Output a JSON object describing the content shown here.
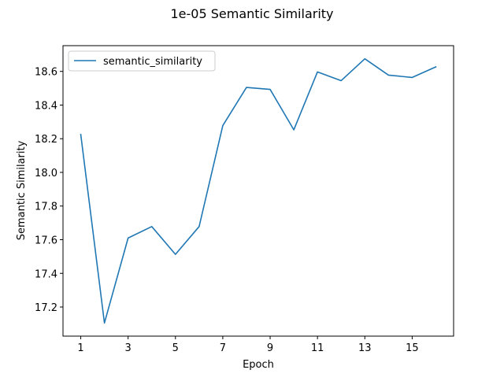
{
  "chart_data": {
    "type": "line",
    "title": "1e-05 Semantic Similarity",
    "xlabel": "Epoch",
    "ylabel": "Semantic Similarity",
    "x": [
      1,
      2,
      3,
      4,
      5,
      6,
      7,
      8,
      9,
      10,
      11,
      12,
      13,
      14,
      15,
      16
    ],
    "series": [
      {
        "name": "semantic_similarity",
        "color": "#1f77b4",
        "values": [
          18.225,
          17.105,
          17.61,
          17.678,
          17.513,
          17.678,
          18.278,
          18.505,
          18.493,
          18.253,
          18.597,
          18.545,
          18.675,
          18.578,
          18.564,
          18.627
        ]
      }
    ],
    "xlim": [
      0.25,
      16.75
    ],
    "ylim": [
      17.027,
      18.753
    ],
    "xticks": [
      1,
      3,
      5,
      7,
      9,
      11,
      13,
      15
    ],
    "yticks": [
      17.2,
      17.4,
      17.6,
      17.8,
      18.0,
      18.2,
      18.4,
      18.6
    ],
    "ytick_labels": [
      "17.2",
      "17.4",
      "17.6",
      "17.8",
      "18.0",
      "18.2",
      "18.4",
      "18.6"
    ],
    "grid": false,
    "legend_position": "top-left"
  }
}
